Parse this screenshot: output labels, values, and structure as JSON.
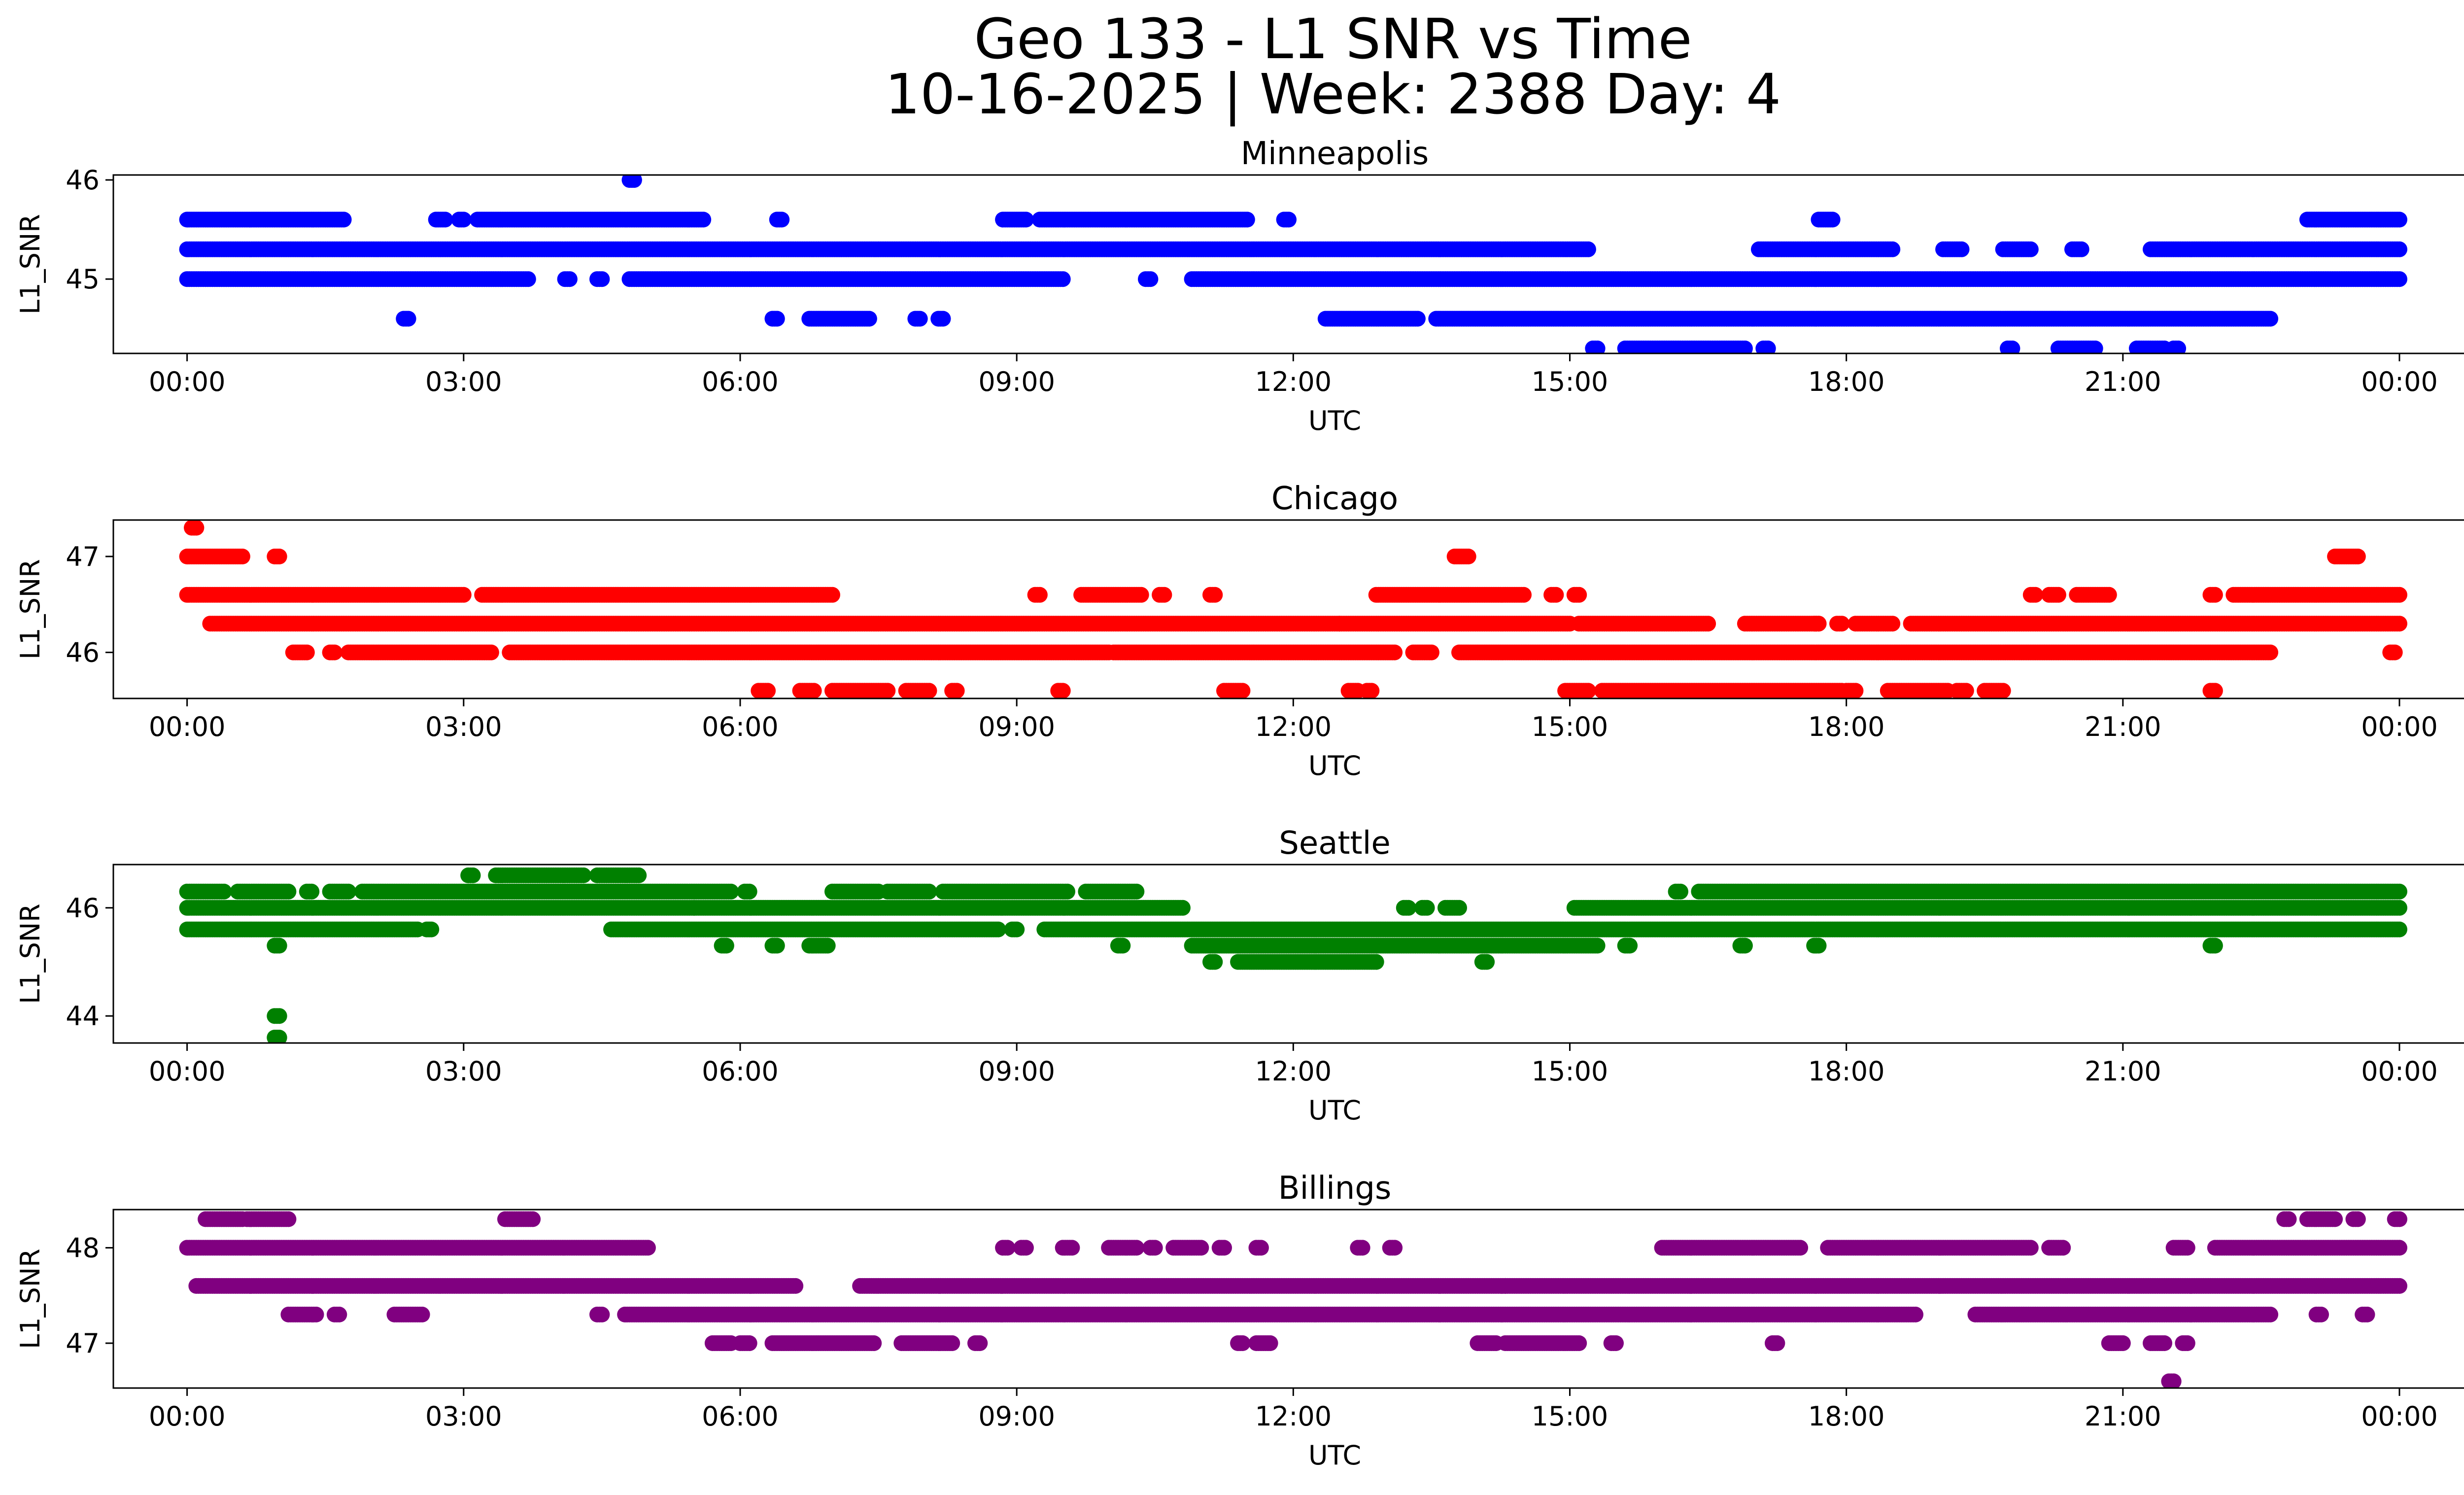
{
  "figure": {
    "title_line1": "Geo 133 - L1 SNR vs Time",
    "title_line2": "10-16-2025 | Week: 2388 Day: 4"
  },
  "chart_data": [
    {
      "type": "scatter",
      "title": "Minneapolis",
      "xlabel": "UTC",
      "ylabel": "L1_SNR",
      "color": "#0000ff",
      "x_unit": "hours UTC",
      "xlim": [
        -0.8,
        25.7
      ],
      "ylim": [
        44.25,
        46.05
      ],
      "xticks": [
        0,
        3,
        6,
        9,
        12,
        15,
        18,
        21,
        24
      ],
      "xtick_labels": [
        "00:00",
        "03:00",
        "06:00",
        "09:00",
        "12:00",
        "15:00",
        "18:00",
        "21:00",
        "00:00"
      ],
      "yticks": [
        45,
        46
      ],
      "ytick_labels": [
        "45",
        "46"
      ],
      "levels": [
        {
          "y": 46.0,
          "ranges": [
            [
              4.8,
              4.85
            ]
          ]
        },
        {
          "y": 45.6,
          "ranges": [
            [
              0.0,
              1.7
            ],
            [
              2.7,
              2.8
            ],
            [
              2.95,
              3.0
            ],
            [
              3.15,
              5.6
            ],
            [
              6.4,
              6.45
            ],
            [
              8.85,
              9.1
            ],
            [
              9.25,
              11.5
            ],
            [
              11.9,
              11.95
            ],
            [
              17.7,
              17.85
            ],
            [
              23.0,
              24.0
            ]
          ]
        },
        {
          "y": 45.3,
          "ranges": [
            [
              0.0,
              15.2
            ],
            [
              17.05,
              18.5
            ],
            [
              19.05,
              19.25
            ],
            [
              19.7,
              20.0
            ],
            [
              20.45,
              20.55
            ],
            [
              21.3,
              24.0
            ]
          ]
        },
        {
          "y": 45.0,
          "ranges": [
            [
              0.0,
              3.7
            ],
            [
              4.1,
              4.15
            ],
            [
              4.45,
              4.5
            ],
            [
              4.8,
              9.5
            ],
            [
              10.4,
              10.45
            ],
            [
              10.9,
              24.0
            ]
          ]
        },
        {
          "y": 44.6,
          "ranges": [
            [
              2.35,
              2.4
            ],
            [
              6.35,
              6.4
            ],
            [
              6.75,
              7.4
            ],
            [
              7.9,
              7.95
            ],
            [
              8.15,
              8.2
            ],
            [
              12.35,
              13.35
            ],
            [
              13.55,
              22.6
            ]
          ]
        },
        {
          "y": 44.3,
          "ranges": [
            [
              15.25,
              15.3
            ],
            [
              15.6,
              16.9
            ],
            [
              17.1,
              17.15
            ],
            [
              19.75,
              19.8
            ],
            [
              20.3,
              20.7
            ],
            [
              21.15,
              21.45
            ],
            [
              21.55,
              21.6
            ]
          ]
        }
      ]
    },
    {
      "type": "scatter",
      "title": "Chicago",
      "xlabel": "UTC",
      "ylabel": "L1_SNR",
      "color": "#ff0000",
      "x_unit": "hours UTC",
      "xlim": [
        -0.8,
        25.7
      ],
      "ylim": [
        45.52,
        47.38
      ],
      "xticks": [
        0,
        3,
        6,
        9,
        12,
        15,
        18,
        21,
        24
      ],
      "xtick_labels": [
        "00:00",
        "03:00",
        "06:00",
        "09:00",
        "12:00",
        "15:00",
        "18:00",
        "21:00",
        "00:00"
      ],
      "yticks": [
        46,
        47
      ],
      "ytick_labels": [
        "46",
        "47"
      ],
      "levels": [
        {
          "y": 47.3,
          "ranges": [
            [
              0.05,
              0.1
            ]
          ]
        },
        {
          "y": 47.0,
          "ranges": [
            [
              0.0,
              0.6
            ],
            [
              0.95,
              1.0
            ],
            [
              13.75,
              13.9
            ],
            [
              23.3,
              23.55
            ]
          ]
        },
        {
          "y": 46.6,
          "ranges": [
            [
              0.0,
              3.0
            ],
            [
              3.2,
              7.0
            ],
            [
              9.2,
              9.25
            ],
            [
              9.7,
              10.35
            ],
            [
              10.55,
              10.6
            ],
            [
              11.1,
              11.15
            ],
            [
              12.9,
              14.5
            ],
            [
              14.8,
              14.85
            ],
            [
              15.05,
              15.1
            ],
            [
              20.0,
              20.05
            ],
            [
              20.2,
              20.3
            ],
            [
              20.5,
              20.85
            ],
            [
              21.95,
              22.0
            ],
            [
              22.2,
              24.0
            ]
          ]
        },
        {
          "y": 46.3,
          "ranges": [
            [
              0.25,
              12.5
            ],
            [
              12.5,
              15.0
            ],
            [
              15.1,
              16.5
            ],
            [
              16.9,
              17.7
            ],
            [
              17.65,
              17.7
            ],
            [
              17.9,
              17.95
            ],
            [
              18.1,
              18.5
            ],
            [
              18.7,
              24.0
            ]
          ]
        },
        {
          "y": 46.0,
          "ranges": [
            [
              1.15,
              1.3
            ],
            [
              1.55,
              1.6
            ],
            [
              1.75,
              3.3
            ],
            [
              3.5,
              10.0
            ],
            [
              10.05,
              13.1
            ],
            [
              13.3,
              13.5
            ],
            [
              13.8,
              22.6
            ]
          ]
        },
        {
          "y": 45.6,
          "ranges": [
            [
              6.2,
              6.3
            ],
            [
              6.65,
              6.8
            ],
            [
              7.0,
              7.6
            ],
            [
              7.8,
              8.05
            ],
            [
              8.3,
              8.35
            ],
            [
              9.45,
              9.5
            ],
            [
              11.25,
              11.45
            ],
            [
              12.6,
              12.7
            ],
            [
              12.8,
              12.85
            ],
            [
              14.95,
              15.2
            ],
            [
              15.35,
              17.95
            ],
            [
              18.0,
              18.1
            ],
            [
              18.45,
              19.1
            ],
            [
              19.2,
              19.3
            ],
            [
              19.5,
              19.7
            ],
            [
              21.95,
              22.0
            ]
          ]
        },
        {
          "y": 46.0,
          "ranges": [
            [
              23.9,
              23.95
            ]
          ]
        }
      ]
    },
    {
      "type": "scatter",
      "title": "Seattle",
      "xlabel": "UTC",
      "ylabel": "L1_SNR",
      "color": "#008000",
      "x_unit": "hours UTC",
      "xlim": [
        -0.8,
        25.7
      ],
      "ylim": [
        43.5,
        46.8
      ],
      "xticks": [
        0,
        3,
        6,
        9,
        12,
        15,
        18,
        21,
        24
      ],
      "xtick_labels": [
        "00:00",
        "03:00",
        "06:00",
        "09:00",
        "12:00",
        "15:00",
        "18:00",
        "21:00",
        "00:00"
      ],
      "yticks": [
        44,
        46
      ],
      "ytick_labels": [
        "44",
        "46"
      ],
      "levels": [
        {
          "y": 46.6,
          "ranges": [
            [
              3.05,
              3.1
            ],
            [
              3.35,
              4.3
            ],
            [
              4.45,
              4.9
            ]
          ]
        },
        {
          "y": 46.3,
          "ranges": [
            [
              0.0,
              0.4
            ],
            [
              0.55,
              1.1
            ],
            [
              1.3,
              1.35
            ],
            [
              1.55,
              1.75
            ],
            [
              1.9,
              5.9
            ],
            [
              6.05,
              6.1
            ],
            [
              7.0,
              7.5
            ],
            [
              7.6,
              8.05
            ],
            [
              8.2,
              9.55
            ],
            [
              9.75,
              10.3
            ],
            [
              16.15,
              16.2
            ],
            [
              16.4,
              24.0
            ]
          ]
        },
        {
          "y": 46.0,
          "ranges": [
            [
              0.0,
              5.5
            ],
            [
              5.5,
              10.8
            ],
            [
              13.2,
              13.25
            ],
            [
              13.4,
              13.45
            ],
            [
              13.65,
              13.8
            ],
            [
              15.05,
              24.0
            ]
          ]
        },
        {
          "y": 45.6,
          "ranges": [
            [
              0.0,
              2.5
            ],
            [
              2.6,
              2.65
            ],
            [
              4.6,
              8.8
            ],
            [
              8.95,
              9.0
            ],
            [
              9.3,
              24.0
            ]
          ]
        },
        {
          "y": 45.3,
          "ranges": [
            [
              0.95,
              1.0
            ],
            [
              5.8,
              5.85
            ],
            [
              6.35,
              6.4
            ],
            [
              6.75,
              6.95
            ],
            [
              10.1,
              10.15
            ],
            [
              10.9,
              15.3
            ],
            [
              15.6,
              15.65
            ],
            [
              16.85,
              16.9
            ],
            [
              17.65,
              17.7
            ],
            [
              21.95,
              22.0
            ]
          ]
        },
        {
          "y": 45.0,
          "ranges": [
            [
              11.1,
              11.15
            ],
            [
              11.4,
              12.9
            ],
            [
              14.05,
              14.1
            ]
          ]
        },
        {
          "y": 44.0,
          "ranges": [
            [
              0.95,
              1.0
            ]
          ]
        },
        {
          "y": 43.6,
          "ranges": [
            [
              0.95,
              1.0
            ]
          ]
        }
      ]
    },
    {
      "type": "scatter",
      "title": "Billings",
      "xlabel": "UTC",
      "ylabel": "L1_SNR",
      "color": "#800080",
      "x_unit": "hours UTC",
      "xlim": [
        -0.8,
        25.7
      ],
      "ylim": [
        46.53,
        48.4
      ],
      "xticks": [
        0,
        3,
        6,
        9,
        12,
        15,
        18,
        21,
        24
      ],
      "xtick_labels": [
        "00:00",
        "03:00",
        "06:00",
        "09:00",
        "12:00",
        "15:00",
        "18:00",
        "21:00",
        "00:00"
      ],
      "yticks": [
        47,
        48
      ],
      "ytick_labels": [
        "47",
        "48"
      ],
      "levels": [
        {
          "y": 48.3,
          "ranges": [
            [
              0.2,
              0.6
            ],
            [
              0.65,
              1.1
            ],
            [
              3.45,
              3.75
            ],
            [
              22.75,
              22.8
            ],
            [
              23.0,
              23.3
            ],
            [
              23.5,
              23.55
            ],
            [
              23.95,
              24.0
            ]
          ]
        },
        {
          "y": 48.0,
          "ranges": [
            [
              0.0,
              5.0
            ],
            [
              8.85,
              8.9
            ],
            [
              9.05,
              9.1
            ],
            [
              9.5,
              9.6
            ],
            [
              10.0,
              10.3
            ],
            [
              10.45,
              10.5
            ],
            [
              10.7,
              11.0
            ],
            [
              11.2,
              11.25
            ],
            [
              11.6,
              11.65
            ],
            [
              12.7,
              12.75
            ],
            [
              13.05,
              13.1
            ],
            [
              16.0,
              17.5
            ],
            [
              17.8,
              20.0
            ],
            [
              20.2,
              20.35
            ],
            [
              21.55,
              21.7
            ],
            [
              22.0,
              24.0
            ]
          ]
        },
        {
          "y": 47.6,
          "ranges": [
            [
              0.1,
              6.6
            ],
            [
              7.3,
              14.3
            ],
            [
              14.3,
              24.0
            ]
          ]
        },
        {
          "y": 47.3,
          "ranges": [
            [
              1.1,
              1.4
            ],
            [
              1.6,
              1.65
            ],
            [
              2.25,
              2.55
            ],
            [
              4.45,
              4.5
            ],
            [
              4.75,
              18.75
            ],
            [
              19.4,
              22.6
            ],
            [
              23.1,
              23.15
            ],
            [
              23.6,
              23.65
            ]
          ]
        },
        {
          "y": 47.0,
          "ranges": [
            [
              5.7,
              5.9
            ],
            [
              6.0,
              6.1
            ],
            [
              6.35,
              7.45
            ],
            [
              7.75,
              8.3
            ],
            [
              8.55,
              8.6
            ],
            [
              11.4,
              11.45
            ],
            [
              11.6,
              11.75
            ],
            [
              14.0,
              14.2
            ],
            [
              14.3,
              15.1
            ],
            [
              15.45,
              15.5
            ],
            [
              17.2,
              17.25
            ],
            [
              20.85,
              21.0
            ],
            [
              21.3,
              21.45
            ],
            [
              21.65,
              21.7
            ]
          ]
        },
        {
          "y": 46.6,
          "ranges": [
            [
              21.5,
              21.55
            ]
          ]
        }
      ]
    }
  ]
}
